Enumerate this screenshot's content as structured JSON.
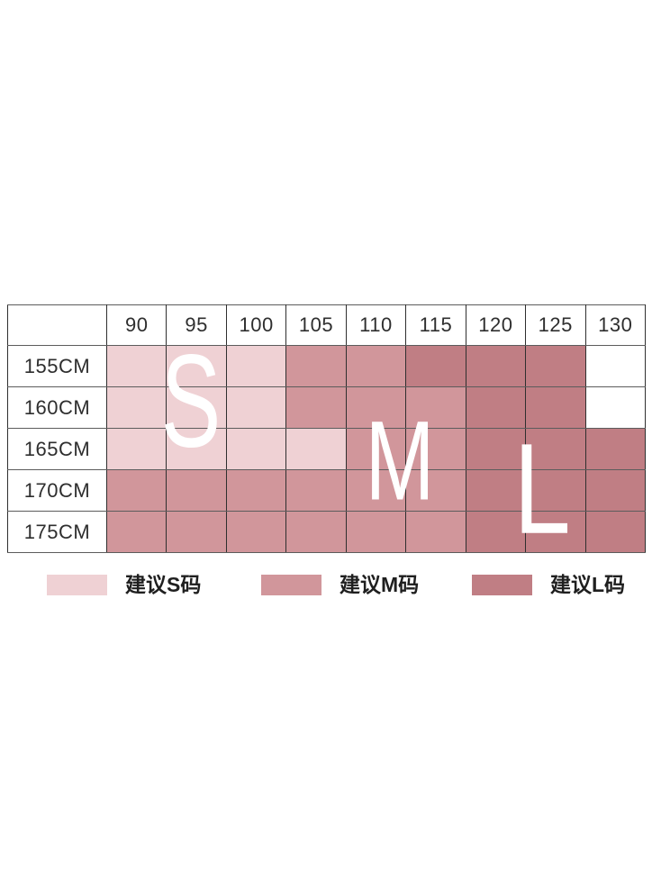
{
  "colors": {
    "S": "#efd1d4",
    "M": "#d1969b",
    "L": "#c07e84",
    "empty": "#ffffff",
    "border_horizontal": "#5c5c5c",
    "border_vertical": "#2f2f2f",
    "label_text": "#2e2e2e",
    "overlay_letter_text": "#ffffff"
  },
  "chart_data": {
    "type": "heatmap",
    "columns": [
      "90",
      "95",
      "100",
      "105",
      "110",
      "115",
      "120",
      "125",
      "130"
    ],
    "rows": [
      "155CM",
      "160CM",
      "165CM",
      "170CM",
      "175CM"
    ],
    "corner_cell": "",
    "matrix": [
      [
        "S",
        "S",
        "S",
        "M",
        "M",
        "L",
        "L",
        "L",
        ""
      ],
      [
        "S",
        "S",
        "S",
        "M",
        "M",
        "M",
        "L",
        "L",
        ""
      ],
      [
        "S",
        "S",
        "S",
        "S",
        "M",
        "M",
        "L",
        "L",
        "L"
      ],
      [
        "M",
        "M",
        "M",
        "M",
        "M",
        "M",
        "L",
        "L",
        "L"
      ],
      [
        "M",
        "M",
        "M",
        "M",
        "M",
        "M",
        "L",
        "L",
        "L"
      ]
    ],
    "legend": [
      {
        "size": "S",
        "label": "建议S码",
        "color": "#efd1d4"
      },
      {
        "size": "M",
        "label": "建议M码",
        "color": "#d1969b"
      },
      {
        "size": "L",
        "label": "建议L码",
        "color": "#c07e84"
      }
    ],
    "overlay_letters": [
      {
        "char": "S"
      },
      {
        "char": "M"
      },
      {
        "char": "L"
      }
    ],
    "layout_hints": {
      "grid": "on",
      "legend_position": "bottom"
    }
  }
}
